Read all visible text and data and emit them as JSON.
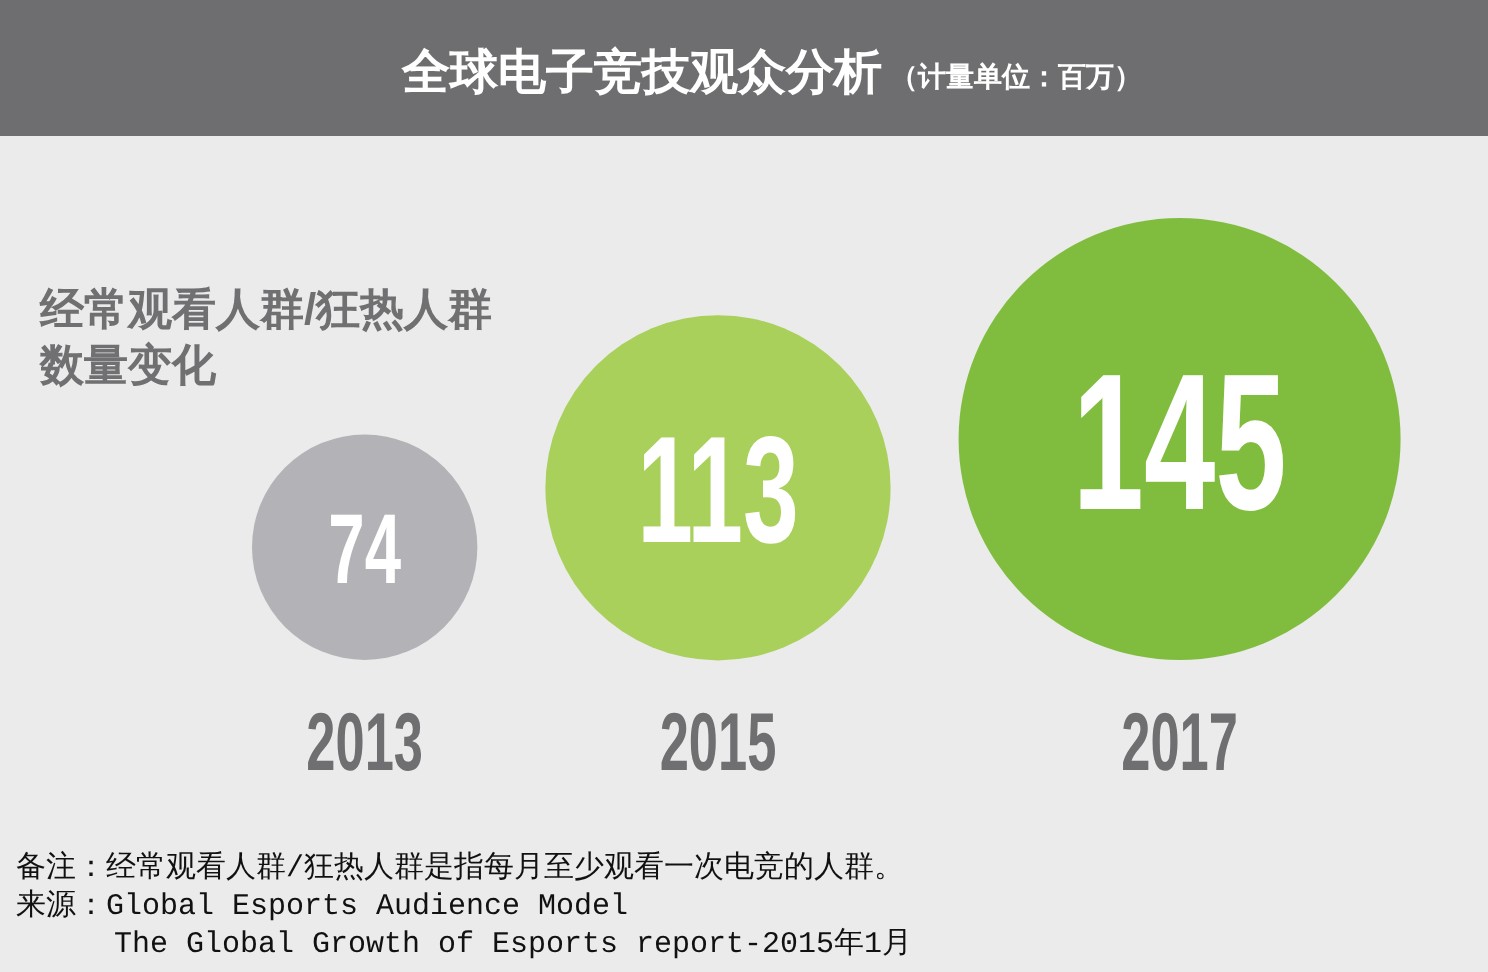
{
  "chart_data": {
    "type": "bubble",
    "title": "全球电子竞技观众分析",
    "subtitle": "（计量单位：百万）",
    "categories": [
      "2013",
      "2015",
      "2017"
    ],
    "values": [
      74,
      113,
      145
    ],
    "sizes": [
      0.26,
      0.61,
      1
    ],
    "colors": [
      "#b3b3b7",
      "#a8d05a",
      "#80bd3f"
    ],
    "data_labels": true,
    "annotations": [
      "经常观看人群/狂热人群数量变化",
      "备注：经常观看人群/狂热人群是指每月至少观看一次电竞的人群。",
      "来源：Global Esports Audience Model\nThe Global Growth of Esports report-2015年1月"
    ]
  }
}
